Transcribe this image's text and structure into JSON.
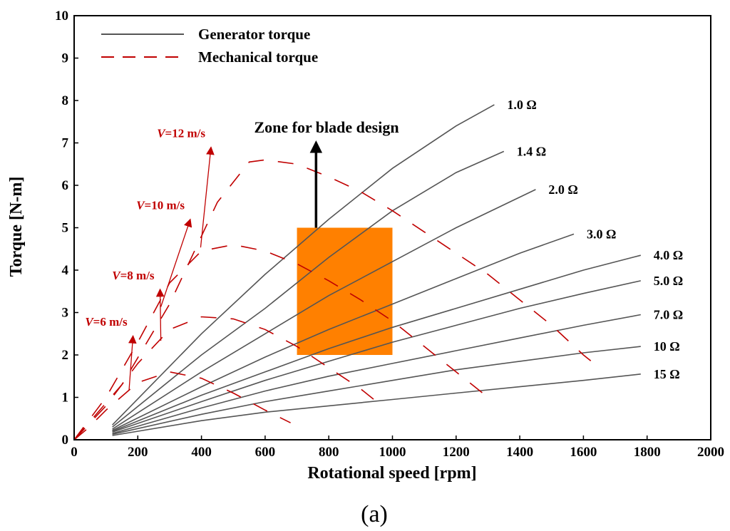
{
  "chart_data": {
    "type": "line",
    "xlabel": "Rotational speed [rpm]",
    "ylabel": "Torque [N-m]",
    "xlim": [
      0,
      2000
    ],
    "ylim": [
      0,
      10
    ],
    "x_ticks": [
      0,
      200,
      400,
      600,
      800,
      1000,
      1200,
      1400,
      1600,
      1800,
      2000
    ],
    "y_ticks": [
      0,
      1,
      2,
      3,
      4,
      5,
      6,
      7,
      8,
      9,
      10
    ],
    "grid": false,
    "legend": {
      "position": "top-left",
      "entries": [
        {
          "label": "Generator torque",
          "style": "solid",
          "color": "#555555"
        },
        {
          "label": "Mechanical torque",
          "style": "dashed",
          "color": "#c00000"
        }
      ]
    },
    "generator_series": [
      {
        "name": "1.0 Ω",
        "x": [
          120,
          400,
          600,
          800,
          1000,
          1200,
          1320
        ],
        "y": [
          0.35,
          2.5,
          3.9,
          5.2,
          6.4,
          7.4,
          7.9
        ]
      },
      {
        "name": "1.4 Ω",
        "x": [
          120,
          400,
          600,
          800,
          1000,
          1200,
          1350
        ],
        "y": [
          0.3,
          2.0,
          3.1,
          4.3,
          5.4,
          6.3,
          6.8
        ]
      },
      {
        "name": "2.0 Ω",
        "x": [
          120,
          400,
          600,
          800,
          1000,
          1200,
          1450
        ],
        "y": [
          0.25,
          1.6,
          2.5,
          3.4,
          4.2,
          5.0,
          5.9
        ]
      },
      {
        "name": "3.0 Ω",
        "x": [
          120,
          400,
          600,
          800,
          1000,
          1200,
          1400,
          1570
        ],
        "y": [
          0.22,
          1.25,
          1.95,
          2.6,
          3.2,
          3.8,
          4.4,
          4.85
        ]
      },
      {
        "name": "4.0 Ω",
        "x": [
          120,
          400,
          600,
          800,
          1000,
          1200,
          1400,
          1600,
          1780
        ],
        "y": [
          0.2,
          1.05,
          1.6,
          2.15,
          2.65,
          3.1,
          3.55,
          4.0,
          4.35
        ]
      },
      {
        "name": "5.0 Ω",
        "x": [
          120,
          400,
          600,
          800,
          1000,
          1200,
          1400,
          1600,
          1780
        ],
        "y": [
          0.18,
          0.9,
          1.4,
          1.85,
          2.3,
          2.7,
          3.1,
          3.45,
          3.75
        ]
      },
      {
        "name": "7.0 Ω",
        "x": [
          120,
          400,
          600,
          800,
          1000,
          1200,
          1400,
          1600,
          1780
        ],
        "y": [
          0.15,
          0.75,
          1.15,
          1.5,
          1.8,
          2.1,
          2.4,
          2.7,
          2.95
        ]
      },
      {
        "name": "10 Ω",
        "x": [
          120,
          400,
          600,
          800,
          1000,
          1200,
          1400,
          1600,
          1780
        ],
        "y": [
          0.13,
          0.6,
          0.9,
          1.15,
          1.4,
          1.65,
          1.85,
          2.05,
          2.2
        ]
      },
      {
        "name": "15 Ω",
        "x": [
          120,
          400,
          600,
          800,
          1000,
          1200,
          1400,
          1600,
          1780
        ],
        "y": [
          0.1,
          0.45,
          0.65,
          0.8,
          0.95,
          1.1,
          1.25,
          1.4,
          1.55
        ]
      }
    ],
    "mechanical_series": [
      {
        "name": "V=6 m/s",
        "x": [
          0,
          40,
          100,
          200,
          300,
          400,
          500,
          600,
          680
        ],
        "y": [
          0,
          0.25,
          0.7,
          1.35,
          1.6,
          1.45,
          1.1,
          0.7,
          0.4
        ]
      },
      {
        "name": "V=8 m/s",
        "x": [
          0,
          100,
          200,
          300,
          400,
          500,
          600,
          700,
          800,
          900,
          950
        ],
        "y": [
          0,
          0.8,
          1.8,
          2.6,
          2.9,
          2.85,
          2.6,
          2.2,
          1.7,
          1.2,
          0.9
        ]
      },
      {
        "name": "V=10 m/s",
        "x": [
          0,
          100,
          200,
          300,
          400,
          500,
          600,
          700,
          800,
          900,
          1000,
          1100,
          1200,
          1300
        ],
        "y": [
          0,
          1.0,
          2.3,
          3.7,
          4.45,
          4.6,
          4.45,
          4.15,
          3.75,
          3.3,
          2.8,
          2.2,
          1.6,
          1.0
        ]
      },
      {
        "name": "V=12 m/s",
        "x": [
          0,
          150,
          300,
          450,
          550,
          600,
          700,
          800,
          900,
          1000,
          1100,
          1200,
          1300,
          1400,
          1500,
          1600,
          1650
        ],
        "y": [
          0,
          1.3,
          3.2,
          5.6,
          6.55,
          6.6,
          6.5,
          6.2,
          5.85,
          5.4,
          4.9,
          4.4,
          3.9,
          3.3,
          2.7,
          2.0,
          1.7
        ]
      }
    ],
    "wind_labels": [
      {
        "label": "V=6 m/s",
        "arrow_tip": [
          185,
          2.45
        ]
      },
      {
        "label": "V=8 m/s",
        "arrow_tip": [
          270,
          3.55
        ]
      },
      {
        "label": "V=10 m/s",
        "arrow_tip": [
          365,
          5.2
        ]
      },
      {
        "label": "V=12 m/s",
        "arrow_tip": [
          430,
          6.9
        ]
      }
    ],
    "zone": {
      "label": "Zone for blade design",
      "x_range": [
        700,
        1000
      ],
      "y_range": [
        2.0,
        5.0
      ],
      "arrow_to_y": 7.0,
      "color": "#ff8000"
    },
    "caption": "(a)"
  }
}
